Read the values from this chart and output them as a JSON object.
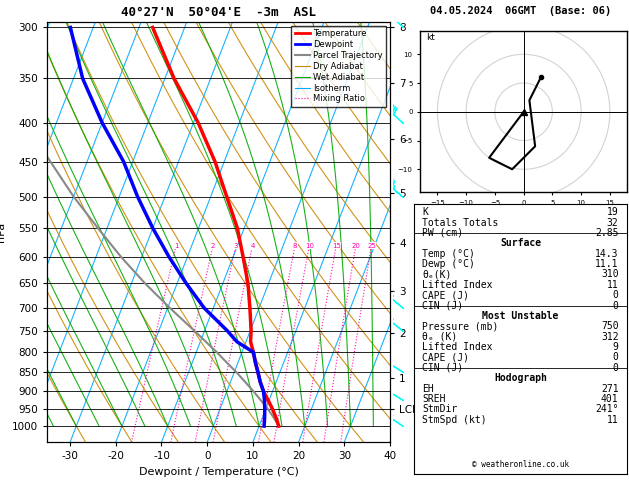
{
  "title_left": "40°27'N  50°04'E  -3m  ASL",
  "title_right": "04.05.2024  06GMT  (Base: 06)",
  "xlabel": "Dewpoint / Temperature (°C)",
  "ylabel_left": "hPa",
  "temp_color": "#ff0000",
  "dewp_color": "#0000ff",
  "parcel_color": "#888888",
  "dry_adiabat_color": "#cc8800",
  "wet_adiabat_color": "#00aa00",
  "isotherm_color": "#00aaff",
  "mixing_ratio_color": "#ff00aa",
  "pressure_ticks": [
    300,
    350,
    400,
    450,
    500,
    550,
    600,
    650,
    700,
    750,
    800,
    850,
    900,
    950,
    1000
  ],
  "km_labels": [
    "8",
    "7",
    "6",
    "5",
    "4",
    "3",
    "2",
    "1",
    "LCL"
  ],
  "km_pressures": [
    300,
    355,
    420,
    495,
    575,
    665,
    755,
    865,
    950
  ],
  "temp_profile_p": [
    1000,
    975,
    950,
    925,
    900,
    875,
    850,
    825,
    800,
    775,
    750,
    700,
    650,
    600,
    550,
    500,
    450,
    400,
    350,
    300
  ],
  "temp_profile_t": [
    14.3,
    13.0,
    11.5,
    9.8,
    8.0,
    6.5,
    5.2,
    3.8,
    2.5,
    1.0,
    0.2,
    -2.0,
    -4.5,
    -7.8,
    -11.5,
    -16.5,
    -22.0,
    -29.0,
    -38.0,
    -47.0
  ],
  "dewp_profile_p": [
    1000,
    975,
    950,
    925,
    900,
    875,
    850,
    825,
    800,
    775,
    750,
    700,
    650,
    600,
    550,
    500,
    450,
    400,
    350,
    300
  ],
  "dewp_profile_t": [
    11.1,
    10.5,
    9.8,
    9.0,
    8.0,
    6.5,
    5.2,
    3.8,
    2.5,
    -2.0,
    -5.0,
    -12.0,
    -18.0,
    -24.0,
    -30.0,
    -36.0,
    -42.0,
    -50.0,
    -58.0,
    -65.0
  ],
  "parcel_profile_p": [
    1000,
    975,
    950,
    925,
    900,
    875,
    850,
    825,
    800,
    775,
    750,
    700,
    650,
    600,
    550,
    500,
    450,
    400,
    350,
    300
  ],
  "parcel_profile_t": [
    14.3,
    12.5,
    10.5,
    8.2,
    5.8,
    3.2,
    0.5,
    -2.5,
    -5.5,
    -8.8,
    -12.2,
    -19.5,
    -27.0,
    -34.5,
    -42.0,
    -50.0,
    -58.0,
    -67.0,
    -76.0,
    -85.0
  ],
  "mixing_ratio_lines": [
    1,
    2,
    3,
    4,
    8,
    10,
    15,
    20,
    25
  ],
  "barb_p": [
    1000,
    925,
    850,
    750,
    700,
    500,
    400,
    300
  ],
  "barb_u": [
    3,
    5,
    8,
    10,
    12,
    18,
    22,
    25
  ],
  "barb_v": [
    -2,
    -3,
    -5,
    -8,
    -10,
    -15,
    -20,
    -23
  ],
  "stats": {
    "K": 19,
    "Totals_Totals": 32,
    "PW_cm": 2.85,
    "Surface_Temp": 14.3,
    "Surface_Dewp": 11.1,
    "Surface_theta_e": 310,
    "Surface_LI": 11,
    "Surface_CAPE": 0,
    "Surface_CIN": 0,
    "MU_Pressure": 750,
    "MU_theta_e": 312,
    "MU_LI": 9,
    "MU_CAPE": 0,
    "MU_CIN": 0,
    "EH": 271,
    "SREH": 401,
    "StmDir": 241,
    "StmSpd_kt": 11
  },
  "hodo_u": [
    0,
    -3,
    -6,
    -2,
    2,
    1,
    3
  ],
  "hodo_v": [
    0,
    -4,
    -8,
    -10,
    -6,
    2,
    6
  ]
}
